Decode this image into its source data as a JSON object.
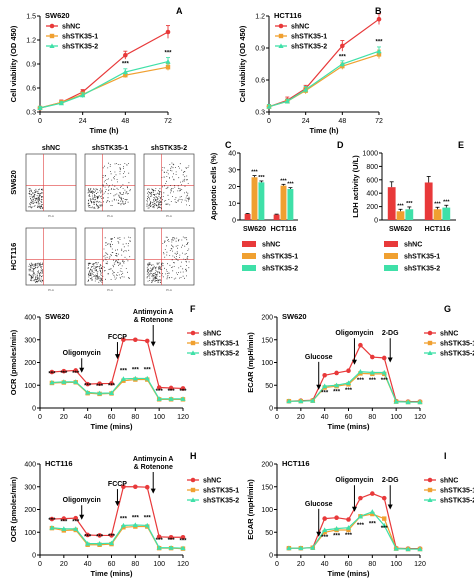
{
  "colors": {
    "shNC": "#e8393a",
    "shSTK35-1": "#f0a030",
    "shSTK35-2": "#3fe0a8"
  },
  "legend_labels": [
    "shNC",
    "shSTK35-1",
    "shSTK35-2"
  ],
  "significance_mark": "***",
  "flow_panel": {
    "letter": "C",
    "columns": [
      "shNC",
      "shSTK35-1",
      "shSTK35-2"
    ],
    "rows": [
      "SW620",
      "HCT116"
    ],
    "axis_tiny": "PI-A"
  },
  "chart_data": [
    {
      "type": "line",
      "letter": "A",
      "cell_line": "SW620",
      "x": [
        0,
        12,
        24,
        48,
        72
      ],
      "series": [
        {
          "name": "shNC",
          "values": [
            0.35,
            0.42,
            0.55,
            1.01,
            1.3
          ],
          "err": [
            0.02,
            0.03,
            0.03,
            0.05,
            0.08
          ]
        },
        {
          "name": "shSTK35-1",
          "values": [
            0.35,
            0.42,
            0.52,
            0.76,
            0.86
          ],
          "err": [
            0.02,
            0.02,
            0.03,
            0.03,
            0.04
          ]
        },
        {
          "name": "shSTK35-2",
          "values": [
            0.35,
            0.41,
            0.51,
            0.8,
            0.93
          ],
          "err": [
            0.02,
            0.02,
            0.03,
            0.04,
            0.05
          ]
        }
      ],
      "xlabel": "Time (h)",
      "ylabel": "Cell viability (OD 450)",
      "xlim": [
        0,
        72
      ],
      "ylim": [
        0.3,
        1.5
      ],
      "xticks": [
        0,
        24,
        48,
        72
      ],
      "yticks": [
        0.3,
        0.6,
        0.9,
        1.2,
        1.5
      ],
      "stars": [
        {
          "x": 48,
          "y": 0.88
        },
        {
          "x": 72,
          "y": 1.02
        }
      ],
      "legend": "top-left"
    },
    {
      "type": "line",
      "letter": "B",
      "cell_line": "HCT116",
      "x": [
        0,
        12,
        24,
        48,
        72
      ],
      "series": [
        {
          "name": "shNC",
          "values": [
            0.35,
            0.41,
            0.52,
            0.92,
            1.17
          ],
          "err": [
            0.02,
            0.03,
            0.03,
            0.05,
            0.05
          ]
        },
        {
          "name": "shSTK35-1",
          "values": [
            0.35,
            0.4,
            0.5,
            0.73,
            0.84
          ],
          "err": [
            0.02,
            0.02,
            0.03,
            0.03,
            0.04
          ]
        },
        {
          "name": "shSTK35-2",
          "values": [
            0.35,
            0.4,
            0.51,
            0.75,
            0.87
          ],
          "err": [
            0.02,
            0.02,
            0.03,
            0.03,
            0.04
          ]
        }
      ],
      "xlabel": "Time (h)",
      "ylabel": "Cell viability (OD 450)",
      "xlim": [
        0,
        72
      ],
      "ylim": [
        0.3,
        1.2
      ],
      "xticks": [
        0,
        24,
        48,
        72
      ],
      "yticks": [
        0.3,
        0.6,
        0.9,
        1.2
      ],
      "stars": [
        {
          "x": 48,
          "y": 0.8
        },
        {
          "x": 72,
          "y": 0.94
        }
      ],
      "legend": "top-left"
    },
    {
      "type": "bar",
      "letter": "D",
      "categories": [
        "SW620",
        "HCT116"
      ],
      "series": [
        {
          "name": "shNC",
          "values": [
            3.6,
            3.2
          ],
          "err": [
            0.3,
            0.3
          ]
        },
        {
          "name": "shSTK35-1",
          "values": [
            25.5,
            20.5
          ],
          "err": [
            1.0,
            0.8
          ]
        },
        {
          "name": "shSTK35-2",
          "values": [
            22.5,
            18.5
          ],
          "err": [
            0.8,
            0.8
          ]
        }
      ],
      "ylabel": "Apoptotic cells (%)",
      "ylim": [
        0,
        40
      ],
      "yticks": [
        0,
        10,
        20,
        30,
        40
      ],
      "stars_on": [
        1,
        2
      ],
      "legend": "below"
    },
    {
      "type": "bar",
      "letter": "E",
      "categories": [
        "SW620",
        "HCT116"
      ],
      "series": [
        {
          "name": "shNC",
          "values": [
            490,
            560
          ],
          "err": [
            80,
            90
          ]
        },
        {
          "name": "shSTK35-1",
          "values": [
            130,
            160
          ],
          "err": [
            30,
            30
          ]
        },
        {
          "name": "shSTK35-2",
          "values": [
            160,
            185
          ],
          "err": [
            35,
            35
          ]
        }
      ],
      "ylabel": "LDH activity (U/L)",
      "ylim": [
        0,
        1000
      ],
      "yticks": [
        0,
        200,
        400,
        600,
        800,
        1000
      ],
      "stars_on": [
        1,
        2
      ],
      "legend": "below"
    },
    {
      "type": "line",
      "letter": "F",
      "cell_line": "SW620",
      "x": [
        10,
        20,
        30,
        40,
        50,
        60,
        70,
        80,
        90,
        100,
        110,
        120
      ],
      "series": [
        {
          "name": "shNC",
          "values": [
            158,
            162,
            165,
            105,
            107,
            108,
            300,
            300,
            295,
            90,
            88,
            86
          ]
        },
        {
          "name": "shSTK35-1",
          "values": [
            110,
            112,
            113,
            65,
            62,
            64,
            120,
            125,
            125,
            38,
            38,
            38
          ]
        },
        {
          "name": "shSTK35-2",
          "values": [
            112,
            115,
            115,
            68,
            65,
            66,
            128,
            130,
            130,
            40,
            40,
            40
          ]
        }
      ],
      "xlabel": "Time (mins)",
      "ylabel": "OCR (pmoles/min)",
      "xlim": [
        0,
        120
      ],
      "ylim": [
        0,
        400
      ],
      "xticks": [
        0,
        20,
        40,
        60,
        80,
        100,
        120
      ],
      "yticks": [
        0,
        100,
        200,
        300,
        400
      ],
      "injections": [
        {
          "label": "Oligomycin",
          "x": 35,
          "label_y": 232,
          "tip_y": 155
        },
        {
          "label": "FCCP",
          "x": 65,
          "label_y": 303,
          "tip_y": 215
        },
        {
          "label": "Antimycin A",
          "label2": "& Rotenone",
          "x": 95,
          "label_y": 378,
          "tip_y": 270
        }
      ],
      "stars": [
        {
          "x": 10,
          "y": 142
        },
        {
          "x": 20,
          "y": 144
        },
        {
          "x": 30,
          "y": 145
        },
        {
          "x": 40,
          "y": 90
        },
        {
          "x": 50,
          "y": 87
        },
        {
          "x": 60,
          "y": 90
        },
        {
          "x": 70,
          "y": 157
        },
        {
          "x": 80,
          "y": 160
        },
        {
          "x": 90,
          "y": 160
        },
        {
          "x": 100,
          "y": 65
        },
        {
          "x": 110,
          "y": 65
        },
        {
          "x": 120,
          "y": 65
        }
      ],
      "legend": "right"
    },
    {
      "type": "line",
      "letter": "G",
      "cell_line": "SW620",
      "x": [
        10,
        20,
        30,
        40,
        50,
        60,
        70,
        80,
        90,
        100,
        110,
        120
      ],
      "series": [
        {
          "name": "shNC",
          "values": [
            15,
            16,
            17,
            72,
            77,
            82,
            138,
            112,
            110,
            15,
            14,
            14
          ]
        },
        {
          "name": "shSTK35-1",
          "values": [
            15,
            15,
            16,
            45,
            48,
            52,
            76,
            75,
            75,
            14,
            13,
            13
          ]
        },
        {
          "name": "shSTK35-2",
          "values": [
            15,
            15,
            16,
            48,
            50,
            55,
            80,
            78,
            78,
            14,
            13,
            13
          ]
        }
      ],
      "xlabel": "Time (mins)",
      "ylabel": "ECAR (mpH/min)",
      "xlim": [
        0,
        120
      ],
      "ylim": [
        0,
        200
      ],
      "xticks": [
        0,
        20,
        40,
        60,
        80,
        100,
        120
      ],
      "yticks": [
        0,
        50,
        100,
        150,
        200
      ],
      "injections": [
        {
          "label": "Glucose",
          "x": 35,
          "label_y": 108,
          "tip_y": 40
        },
        {
          "label": "Oligomycin",
          "x": 65,
          "label_y": 160,
          "tip_y": 95
        },
        {
          "label": "2-DG",
          "x": 95,
          "label_y": 160,
          "tip_y": 100
        }
      ],
      "stars": [
        {
          "x": 40,
          "y": 30
        },
        {
          "x": 50,
          "y": 32
        },
        {
          "x": 60,
          "y": 35
        },
        {
          "x": 70,
          "y": 57
        },
        {
          "x": 80,
          "y": 57
        },
        {
          "x": 90,
          "y": 57
        }
      ],
      "legend": "right"
    },
    {
      "type": "line",
      "letter": "H",
      "cell_line": "HCT116",
      "x": [
        10,
        20,
        30,
        40,
        50,
        60,
        70,
        80,
        90,
        100,
        110,
        120
      ],
      "series": [
        {
          "name": "shNC",
          "values": [
            158,
            160,
            162,
            88,
            86,
            86,
            300,
            300,
            298,
            80,
            78,
            78
          ]
        },
        {
          "name": "shSTK35-1",
          "values": [
            118,
            108,
            110,
            45,
            45,
            48,
            122,
            125,
            125,
            30,
            30,
            28
          ]
        },
        {
          "name": "shSTK35-2",
          "values": [
            120,
            115,
            115,
            50,
            50,
            52,
            130,
            132,
            130,
            32,
            32,
            30
          ]
        }
      ],
      "xlabel": "Time (mins)",
      "ylabel": "OCR (pmoles/min)",
      "xlim": [
        0,
        120
      ],
      "ylim": [
        0,
        400
      ],
      "xticks": [
        0,
        20,
        40,
        60,
        80,
        100,
        120
      ],
      "yticks": [
        0,
        100,
        200,
        300,
        400
      ],
      "injections": [
        {
          "label": "Oligomycin",
          "x": 35,
          "label_y": 232,
          "tip_y": 155
        },
        {
          "label": "FCCP",
          "x": 65,
          "label_y": 303,
          "tip_y": 215
        },
        {
          "label": "Antimycin A",
          "label2": "& Rotenone",
          "x": 95,
          "label_y": 378,
          "tip_y": 270
        }
      ],
      "stars": [
        {
          "x": 10,
          "y": 145
        },
        {
          "x": 20,
          "y": 138
        },
        {
          "x": 30,
          "y": 138
        },
        {
          "x": 40,
          "y": 72
        },
        {
          "x": 50,
          "y": 72
        },
        {
          "x": 60,
          "y": 74
        },
        {
          "x": 70,
          "y": 152
        },
        {
          "x": 80,
          "y": 155
        },
        {
          "x": 90,
          "y": 155
        },
        {
          "x": 100,
          "y": 58
        },
        {
          "x": 110,
          "y": 58
        },
        {
          "x": 120,
          "y": 56
        }
      ],
      "legend": "right"
    },
    {
      "type": "line",
      "letter": "I",
      "cell_line": "HCT116",
      "x": [
        10,
        20,
        30,
        40,
        50,
        60,
        70,
        80,
        90,
        100,
        110,
        120
      ],
      "series": [
        {
          "name": "shNC",
          "values": [
            15,
            15,
            16,
            80,
            82,
            78,
            125,
            135,
            125,
            15,
            14,
            14
          ]
        },
        {
          "name": "shSTK35-1",
          "values": [
            15,
            15,
            16,
            50,
            55,
            55,
            85,
            90,
            80,
            14,
            13,
            13
          ]
        },
        {
          "name": "shSTK35-2",
          "values": [
            15,
            15,
            16,
            55,
            58,
            60,
            85,
            95,
            65,
            14,
            13,
            13
          ]
        }
      ],
      "xlabel": "Time (mins)",
      "ylabel": "ECAR (mpH/min)",
      "xlim": [
        0,
        120
      ],
      "ylim": [
        0,
        200
      ],
      "xticks": [
        0,
        20,
        40,
        60,
        80,
        100,
        120
      ],
      "yticks": [
        0,
        50,
        100,
        150,
        200
      ],
      "injections": [
        {
          "label": "Glucose",
          "x": 35,
          "label_y": 108,
          "tip_y": 40
        },
        {
          "label": "Oligomycin",
          "x": 65,
          "label_y": 160,
          "tip_y": 95
        },
        {
          "label": "2-DG",
          "x": 95,
          "label_y": 160,
          "tip_y": 100
        }
      ],
      "stars": [
        {
          "x": 40,
          "y": 35
        },
        {
          "x": 50,
          "y": 38
        },
        {
          "x": 60,
          "y": 40
        },
        {
          "x": 70,
          "y": 62
        },
        {
          "x": 80,
          "y": 65
        },
        {
          "x": 90,
          "y": 55
        }
      ],
      "legend": "right"
    }
  ]
}
